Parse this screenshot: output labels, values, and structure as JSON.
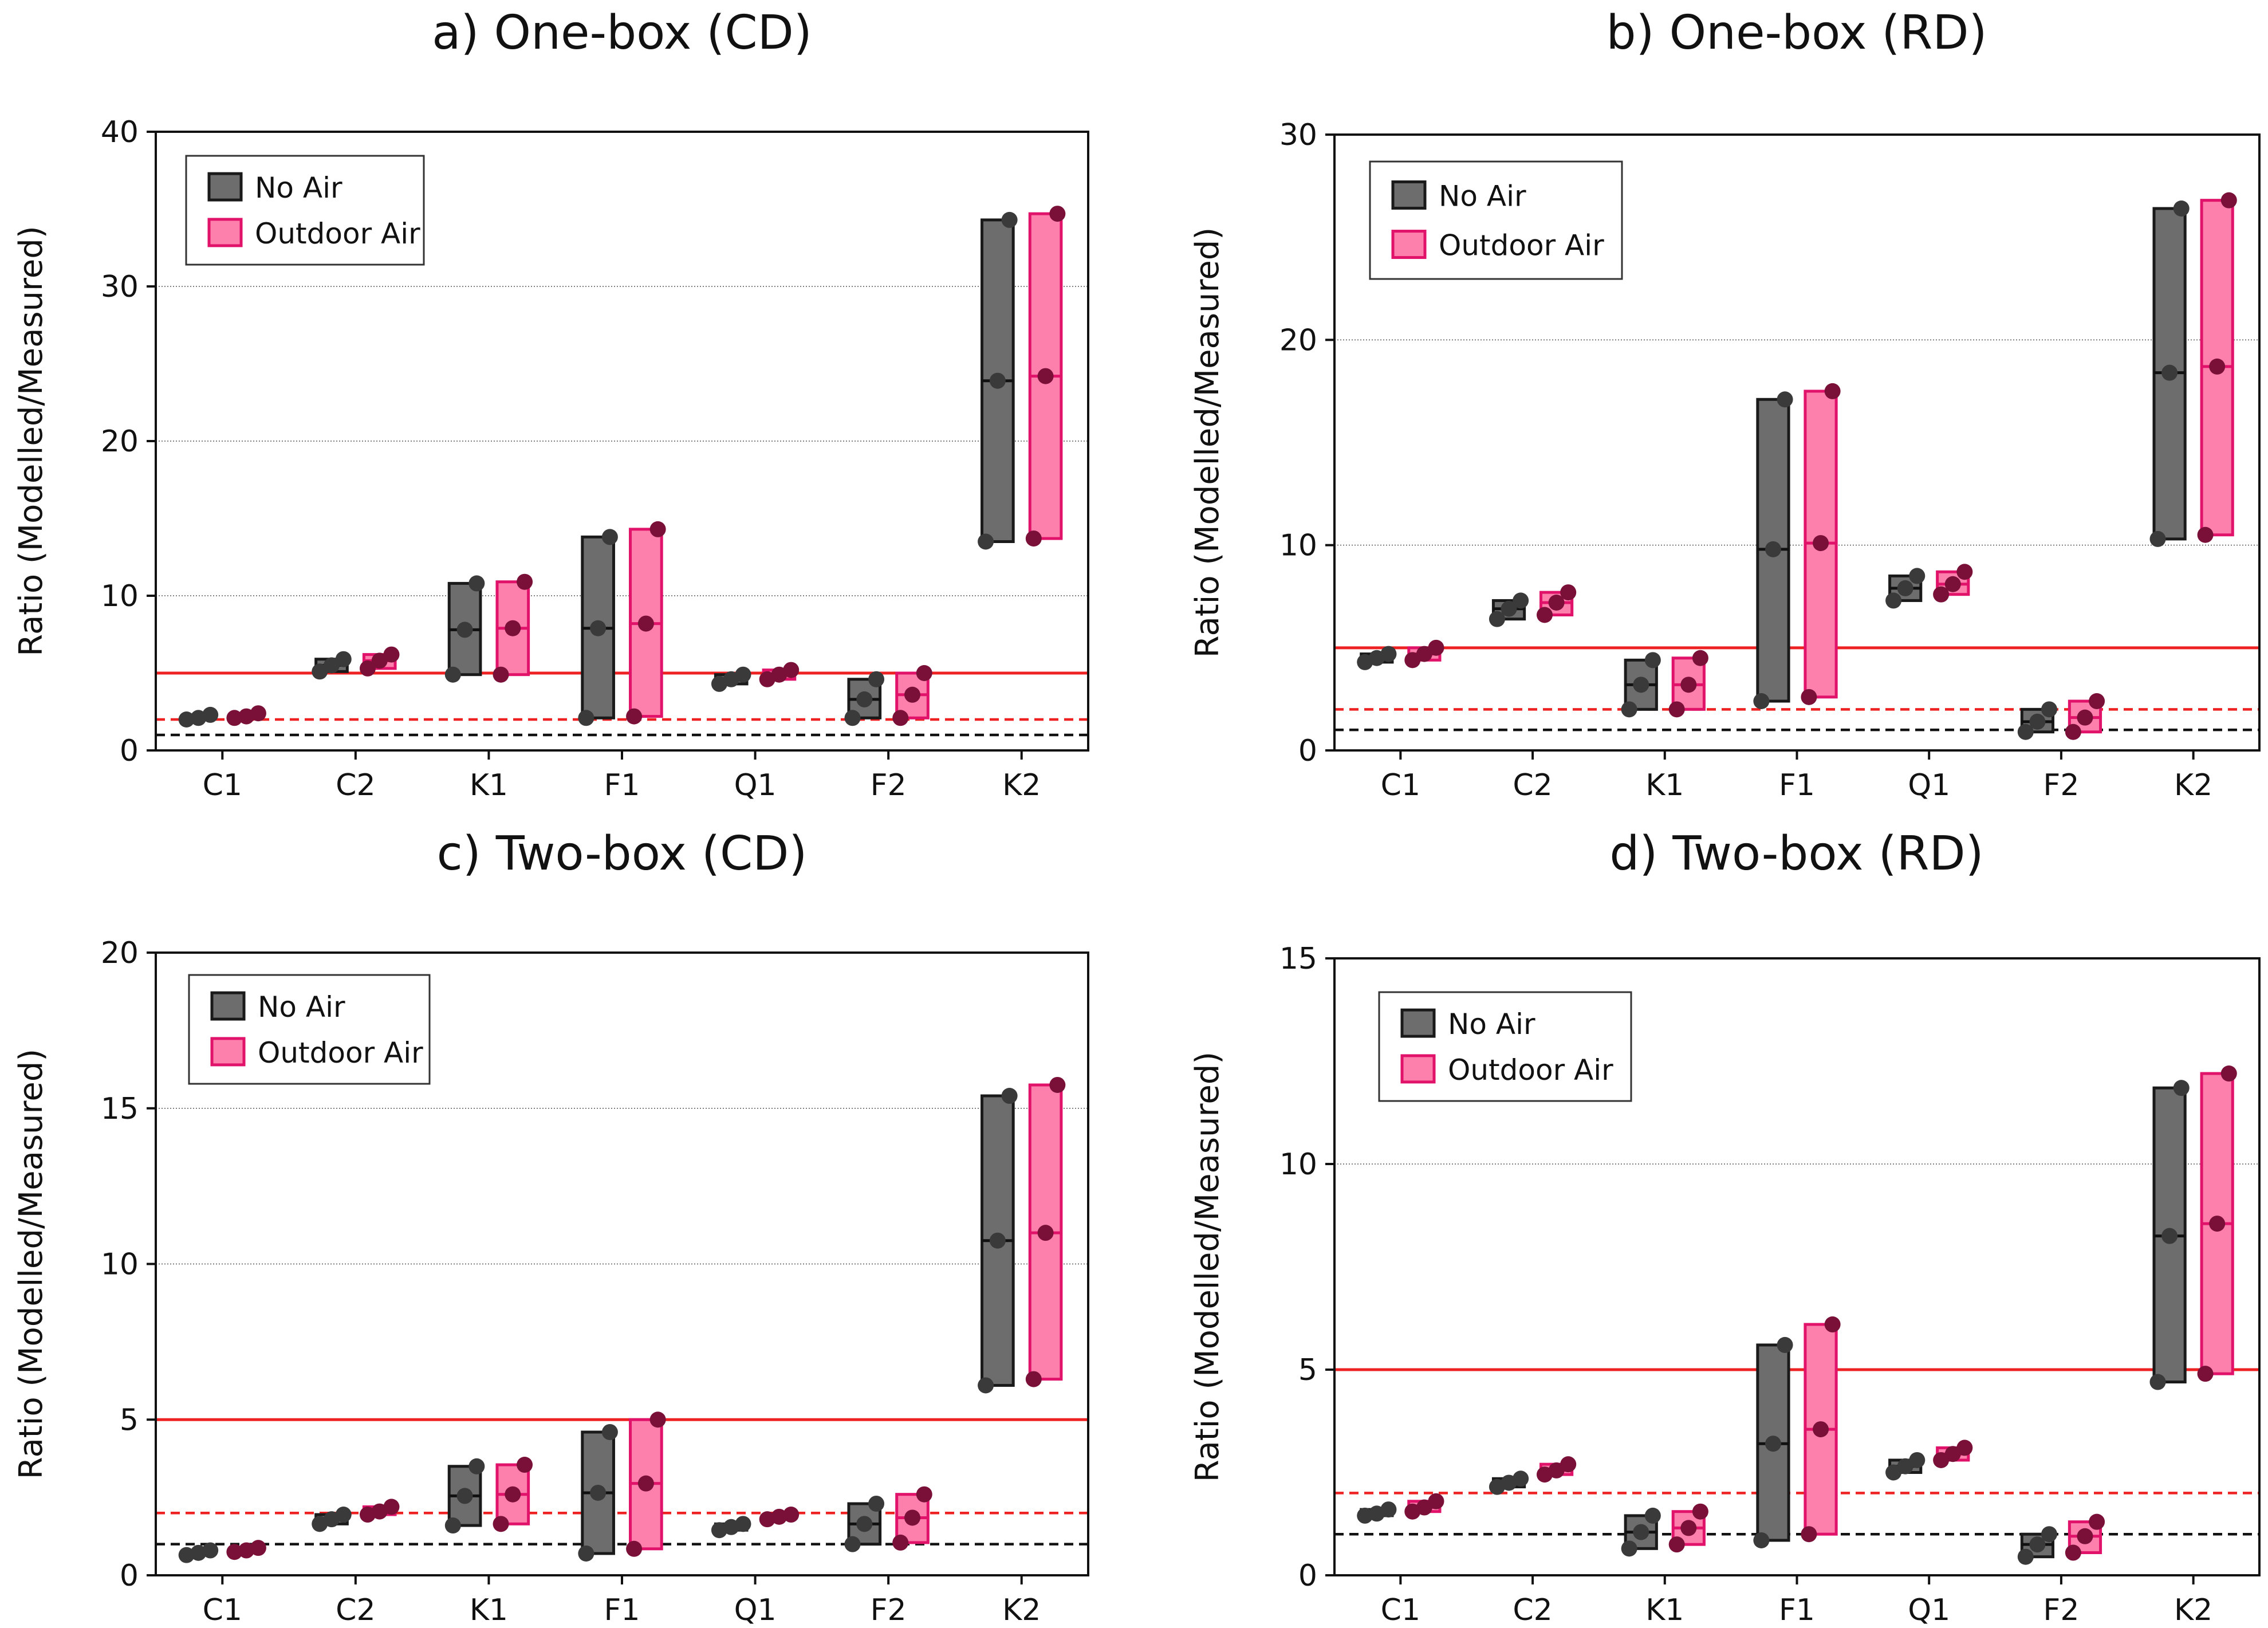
{
  "colors": {
    "no_air_fill": "#6d6d6d",
    "no_air_edge": "#1a1a1a",
    "no_air_dot": "#3a3a3a",
    "outdoor_fill": "#fd7fac",
    "outdoor_edge": "#e0126a",
    "outdoor_dot": "#7a1038",
    "line5": "#ee2222",
    "line2": "#ee2222",
    "line1": "#111111",
    "grid": "#555555"
  },
  "chart_data": [
    {
      "type": "box",
      "title": "a) One-box (CD)",
      "ylabel": "Ratio (Modelled/Measured)",
      "xlabel": "",
      "ylim": [
        0,
        40
      ],
      "yticks": [
        0,
        10,
        20,
        30,
        40
      ],
      "grid_lines": [
        10,
        20,
        30
      ],
      "reference_lines": [
        5,
        2,
        1
      ],
      "legend_position": "top-left",
      "categories": [
        "C1",
        "C2",
        "K1",
        "F1",
        "Q1",
        "F2",
        "K2"
      ],
      "series": [
        {
          "name": "No Air",
          "values": [
            {
              "min": 2.0,
              "median": 2.1,
              "max": 2.3
            },
            {
              "min": 5.1,
              "median": 5.5,
              "max": 5.9
            },
            {
              "min": 4.9,
              "median": 7.8,
              "max": 10.8
            },
            {
              "min": 2.1,
              "median": 7.9,
              "max": 13.8
            },
            {
              "min": 4.3,
              "median": 4.6,
              "max": 4.9
            },
            {
              "min": 2.1,
              "median": 3.3,
              "max": 4.6
            },
            {
              "min": 13.5,
              "median": 23.9,
              "max": 34.3
            }
          ]
        },
        {
          "name": "Outdoor Air",
          "values": [
            {
              "min": 2.1,
              "median": 2.2,
              "max": 2.4
            },
            {
              "min": 5.3,
              "median": 5.8,
              "max": 6.2
            },
            {
              "min": 4.9,
              "median": 7.9,
              "max": 10.9
            },
            {
              "min": 2.2,
              "median": 8.2,
              "max": 14.3
            },
            {
              "min": 4.6,
              "median": 4.9,
              "max": 5.2
            },
            {
              "min": 2.1,
              "median": 3.6,
              "max": 5.0
            },
            {
              "min": 13.7,
              "median": 24.2,
              "max": 34.7
            }
          ]
        }
      ]
    },
    {
      "type": "box",
      "title": "b) One-box (RD)",
      "ylabel": "Ratio (Modelled/Measured)",
      "xlabel": "",
      "ylim": [
        0,
        30
      ],
      "yticks": [
        0,
        10,
        20,
        30
      ],
      "grid_lines": [
        10,
        20
      ],
      "reference_lines": [
        5,
        2,
        1
      ],
      "legend_position": "top-left",
      "categories": [
        "C1",
        "C2",
        "K1",
        "F1",
        "Q1",
        "F2",
        "K2"
      ],
      "series": [
        {
          "name": "No Air",
          "values": [
            {
              "min": 4.3,
              "median": 4.5,
              "max": 4.7
            },
            {
              "min": 6.4,
              "median": 6.9,
              "max": 7.3
            },
            {
              "min": 2.0,
              "median": 3.2,
              "max": 4.4
            },
            {
              "min": 2.4,
              "median": 9.8,
              "max": 17.1
            },
            {
              "min": 7.3,
              "median": 7.9,
              "max": 8.5
            },
            {
              "min": 0.9,
              "median": 1.4,
              "max": 2.0
            },
            {
              "min": 10.3,
              "median": 18.4,
              "max": 26.4
            }
          ]
        },
        {
          "name": "Outdoor Air",
          "values": [
            {
              "min": 4.4,
              "median": 4.7,
              "max": 5.0
            },
            {
              "min": 6.6,
              "median": 7.2,
              "max": 7.7
            },
            {
              "min": 2.0,
              "median": 3.2,
              "max": 4.5
            },
            {
              "min": 2.6,
              "median": 10.1,
              "max": 17.5
            },
            {
              "min": 7.6,
              "median": 8.1,
              "max": 8.7
            },
            {
              "min": 0.9,
              "median": 1.6,
              "max": 2.4
            },
            {
              "min": 10.5,
              "median": 18.7,
              "max": 26.8
            }
          ]
        }
      ]
    },
    {
      "type": "box",
      "title": "c) Two-box (CD)",
      "ylabel": "Ratio (Modelled/Measured)",
      "xlabel": "",
      "ylim": [
        0,
        20
      ],
      "yticks": [
        0,
        5,
        10,
        15,
        20
      ],
      "grid_lines": [
        5,
        10,
        15
      ],
      "reference_lines": [
        5,
        2,
        1
      ],
      "legend_position": "top-left",
      "categories": [
        "C1",
        "C2",
        "K1",
        "F1",
        "Q1",
        "F2",
        "K2"
      ],
      "series": [
        {
          "name": "No Air",
          "values": [
            {
              "min": 0.65,
              "median": 0.72,
              "max": 0.8
            },
            {
              "min": 1.65,
              "median": 1.8,
              "max": 1.95
            },
            {
              "min": 1.6,
              "median": 2.55,
              "max": 3.5
            },
            {
              "min": 0.7,
              "median": 2.65,
              "max": 4.6
            },
            {
              "min": 1.45,
              "median": 1.55,
              "max": 1.65
            },
            {
              "min": 1.0,
              "median": 1.65,
              "max": 2.3
            },
            {
              "min": 6.1,
              "median": 10.75,
              "max": 15.4
            }
          ]
        },
        {
          "name": "Outdoor Air",
          "values": [
            {
              "min": 0.75,
              "median": 0.8,
              "max": 0.88
            },
            {
              "min": 1.95,
              "median": 2.05,
              "max": 2.2
            },
            {
              "min": 1.65,
              "median": 2.6,
              "max": 3.55
            },
            {
              "min": 0.85,
              "median": 2.95,
              "max": 5.0
            },
            {
              "min": 1.8,
              "median": 1.88,
              "max": 1.95
            },
            {
              "min": 1.05,
              "median": 1.85,
              "max": 2.6
            },
            {
              "min": 6.3,
              "median": 11.0,
              "max": 15.75
            }
          ]
        }
      ]
    },
    {
      "type": "box",
      "title": "d) Two-box (RD)",
      "ylabel": "Ratio (Modelled/Measured)",
      "xlabel": "",
      "ylim": [
        0,
        15
      ],
      "yticks": [
        0,
        5,
        10,
        15
      ],
      "grid_lines": [
        10
      ],
      "reference_lines": [
        5,
        2,
        1
      ],
      "legend_position": "top-left",
      "categories": [
        "C1",
        "C2",
        "K1",
        "F1",
        "Q1",
        "F2",
        "K2"
      ],
      "series": [
        {
          "name": "No Air",
          "values": [
            {
              "min": 1.45,
              "median": 1.5,
              "max": 1.6
            },
            {
              "min": 2.15,
              "median": 2.25,
              "max": 2.35
            },
            {
              "min": 0.65,
              "median": 1.05,
              "max": 1.45
            },
            {
              "min": 0.85,
              "median": 3.2,
              "max": 5.6
            },
            {
              "min": 2.5,
              "median": 2.65,
              "max": 2.8
            },
            {
              "min": 0.45,
              "median": 0.75,
              "max": 1.0
            },
            {
              "min": 4.7,
              "median": 8.25,
              "max": 11.85
            }
          ]
        },
        {
          "name": "Outdoor Air",
          "values": [
            {
              "min": 1.55,
              "median": 1.65,
              "max": 1.8
            },
            {
              "min": 2.45,
              "median": 2.55,
              "max": 2.7
            },
            {
              "min": 0.75,
              "median": 1.15,
              "max": 1.55
            },
            {
              "min": 1.0,
              "median": 3.55,
              "max": 6.1
            },
            {
              "min": 2.8,
              "median": 2.95,
              "max": 3.1
            },
            {
              "min": 0.55,
              "median": 0.95,
              "max": 1.3
            },
            {
              "min": 4.9,
              "median": 8.55,
              "max": 12.2
            }
          ]
        }
      ]
    }
  ]
}
